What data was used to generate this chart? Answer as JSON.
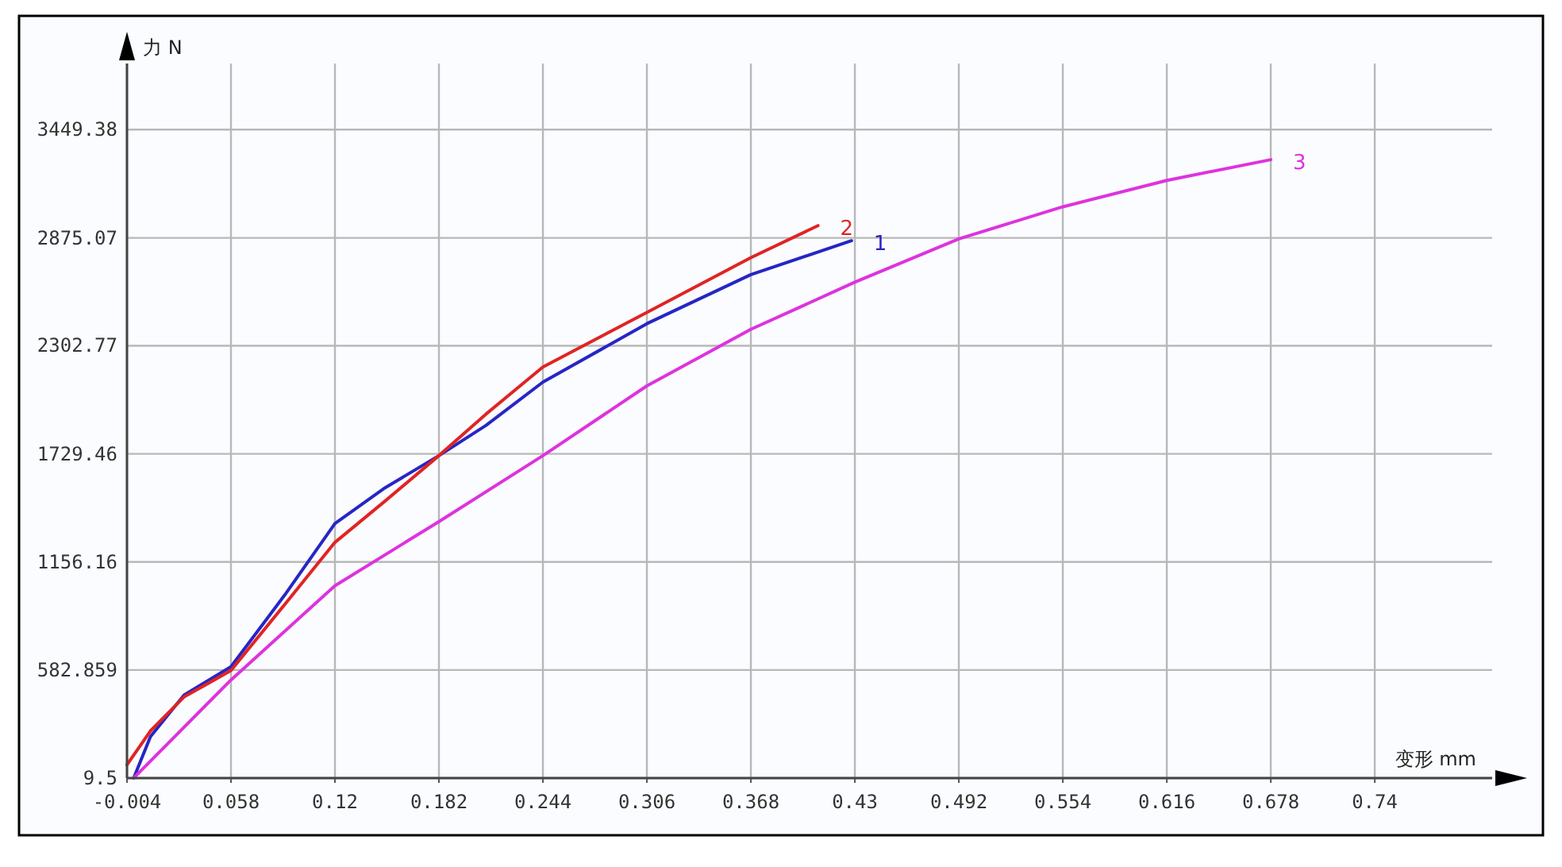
{
  "chart_data": {
    "type": "line",
    "xlabel": "变形 mm",
    "ylabel": "力 N",
    "grid": true,
    "xlim": [
      -0.004,
      0.81
    ],
    "ylim": [
      9.5,
      3800
    ],
    "xticks": [
      -0.004,
      0.058,
      0.12,
      0.182,
      0.244,
      0.306,
      0.368,
      0.43,
      0.492,
      0.554,
      0.616,
      0.678,
      0.74
    ],
    "yticks": [
      9.5,
      582.859,
      1156.16,
      1729.46,
      2302.77,
      2875.07,
      3449.38
    ],
    "series": [
      {
        "name": "1",
        "color": "#2626c4",
        "x": [
          0.0,
          0.01,
          0.03,
          0.058,
          0.09,
          0.12,
          0.15,
          0.182,
          0.21,
          0.244,
          0.306,
          0.368,
          0.428
        ],
        "values": [
          10,
          230,
          450,
          600,
          980,
          1360,
          1550,
          1720,
          1880,
          2110,
          2420,
          2680,
          2860
        ]
      },
      {
        "name": "2",
        "color": "#e02424",
        "x": [
          -0.004,
          0.01,
          0.03,
          0.058,
          0.09,
          0.12,
          0.15,
          0.182,
          0.21,
          0.244,
          0.306,
          0.368,
          0.408
        ],
        "values": [
          80,
          260,
          440,
          580,
          930,
          1260,
          1480,
          1720,
          1940,
          2190,
          2480,
          2770,
          2940
        ]
      },
      {
        "name": "3",
        "color": "#dd33dd",
        "x": [
          0.0,
          0.058,
          0.12,
          0.182,
          0.244,
          0.306,
          0.368,
          0.43,
          0.492,
          0.554,
          0.616,
          0.678
        ],
        "values": [
          10,
          530,
          1030,
          1370,
          1720,
          2090,
          2390,
          2640,
          2870,
          3040,
          3180,
          3290
        ]
      }
    ]
  }
}
